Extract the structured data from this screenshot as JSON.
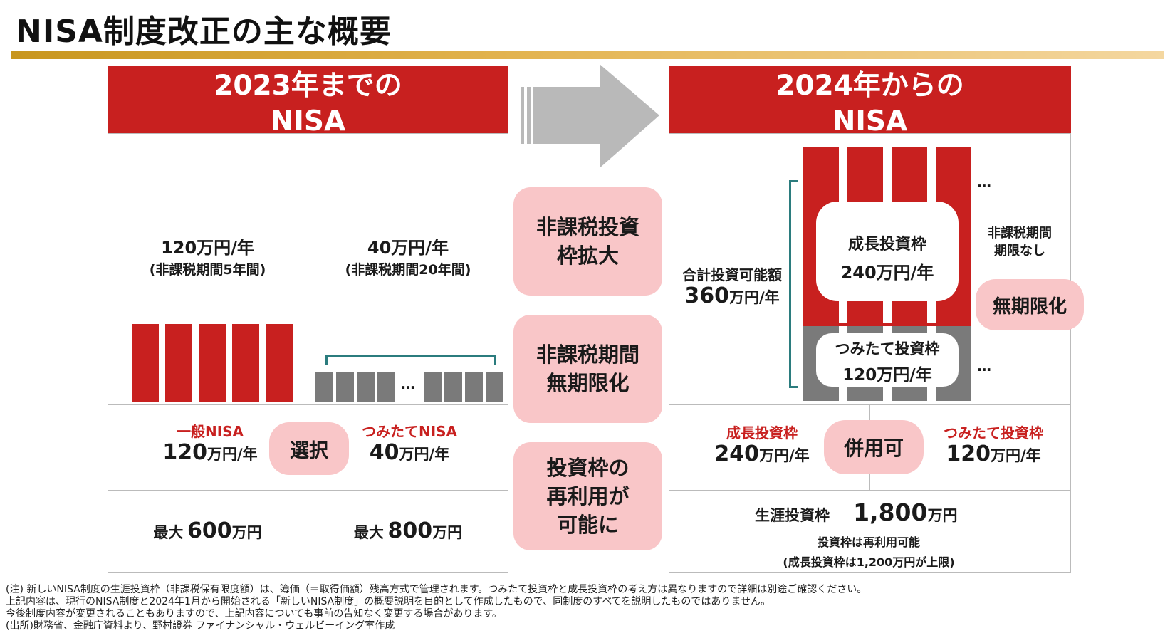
{
  "title": "NISA制度改正の主な概要",
  "old": {
    "header_line1": "2023年までの",
    "header_line2": "NISA",
    "general": {
      "amount": "120万円/年",
      "period": "(非課税期間5年間)",
      "label": "一般NISA",
      "annual_num": "120",
      "annual_unit": "万円/年",
      "max_prefix": "最大",
      "max_num": "600",
      "max_unit": "万円"
    },
    "tsumitate": {
      "amount": "40万円/年",
      "period": "(非課税期間20年間)",
      "label": "つみたてNISA",
      "annual_num": "40",
      "annual_unit": "万円/年",
      "max_prefix": "最大",
      "max_num": "800",
      "max_unit": "万円"
    },
    "choice_label": "選択",
    "ellipsis": "…"
  },
  "changes": [
    {
      "line1": "非課税投資",
      "line2": "枠拡大"
    },
    {
      "line1": "非課税期間",
      "line2": "無期限化"
    },
    {
      "line1": "投資枠の",
      "line2": "再利用が",
      "line3": "可能に"
    }
  ],
  "new": {
    "header_line1": "2024年からの",
    "header_line2": "NISA",
    "total_label": "合計投資可能額",
    "total_num": "360",
    "total_unit": "万円/年",
    "growth_box_line1": "成長投資枠",
    "growth_box_line2": "240万円/年",
    "tsumitate_box_line1": "つみたて投資枠",
    "tsumitate_box_line2": "120万円/年",
    "period_note_line1": "非課税期間",
    "period_note_line2": "期限なし",
    "indefinite_label": "無期限化",
    "dots": "…",
    "growth": {
      "label": "成長投資枠",
      "num": "240",
      "unit": "万円/年"
    },
    "tsumitate": {
      "label": "つみたて投資枠",
      "num": "120",
      "unit": "万円/年"
    },
    "combine_label": "併用可",
    "lifetime_label": "生涯投資枠",
    "lifetime_num": "1,800",
    "lifetime_unit": "万円",
    "reuse_note": "投資枠は再利用可能",
    "cap_note": "(成長投資枠は1,200万円が上限)"
  },
  "colors": {
    "red": "#c8201f",
    "pink": "#f9c6c8",
    "gray": "#7a7a7a",
    "gold": "#e3b451"
  },
  "footnotes": [
    "(注) 新しいNISA制度の生涯投資枠（非課税保有限度額）は、簿価（＝取得価額）残高方式で管理されます。つみたて投資枠と成長投資枠の考え方は異なりますので詳細は別途ご確認ください。",
    "上記内容は、現行のNISA制度と2024年1月から開始される「新しいNISA制度」の概要説明を目的として作成したもので、同制度のすべてを説明したものではありません。",
    "今後制度内容が変更されることもありますので、上記内容についても事前の告知なく変更する場合があります。",
    "(出所)財務省、金融庁資料より、野村證券 ファイナンシャル・ウェルビーイング室作成"
  ]
}
